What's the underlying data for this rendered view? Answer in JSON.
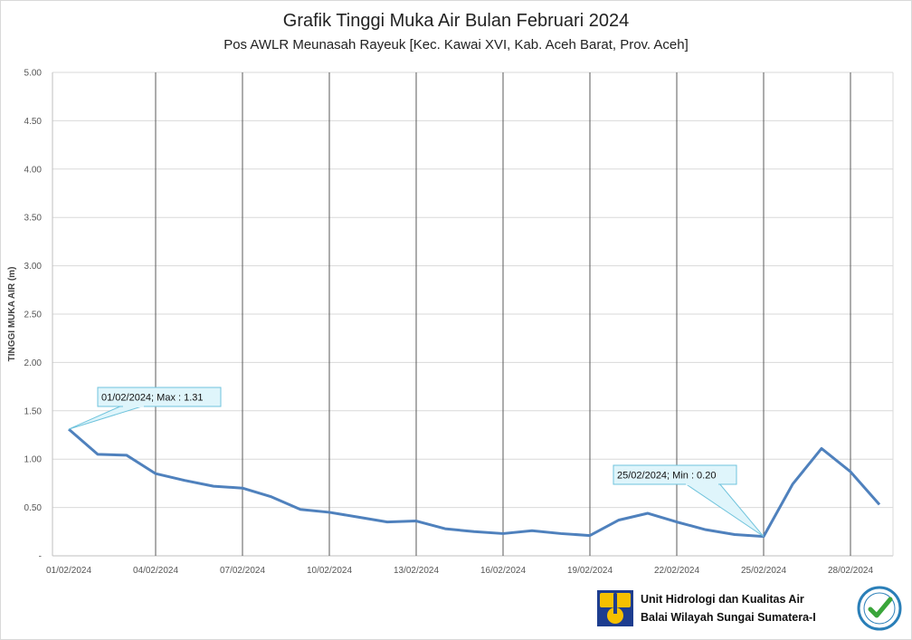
{
  "chart_data": {
    "type": "line",
    "title": "Grafik Tinggi Muka Air Bulan Februari 2024",
    "subtitle": "Pos AWLR Meunasah Rayeuk [Kec. Kawai XVI, Kab. Aceh Barat, Prov. Aceh]",
    "xlabel": "",
    "ylabel": "TINGGI MUKA AIR (m)",
    "ylim": [
      0,
      5
    ],
    "y_ticks": [
      "-",
      "0.50",
      "1.00",
      "1.50",
      "2.00",
      "2.50",
      "3.00",
      "3.50",
      "4.00",
      "4.50",
      "5.00"
    ],
    "x_tick_labels": [
      "01/02/2024",
      "04/02/2024",
      "07/02/2024",
      "10/02/2024",
      "13/02/2024",
      "16/02/2024",
      "19/02/2024",
      "22/02/2024",
      "25/02/2024",
      "28/02/2024"
    ],
    "grid": true,
    "series": [
      {
        "color": "#4f81bd",
        "x": [
          "01/02/2024",
          "02/02/2024",
          "03/02/2024",
          "04/02/2024",
          "05/02/2024",
          "06/02/2024",
          "07/02/2024",
          "08/02/2024",
          "09/02/2024",
          "10/02/2024",
          "11/02/2024",
          "12/02/2024",
          "13/02/2024",
          "14/02/2024",
          "15/02/2024",
          "16/02/2024",
          "17/02/2024",
          "18/02/2024",
          "19/02/2024",
          "20/02/2024",
          "21/02/2024",
          "22/02/2024",
          "23/02/2024",
          "24/02/2024",
          "25/02/2024",
          "26/02/2024",
          "27/02/2024",
          "28/02/2024",
          "29/02/2024"
        ],
        "values": [
          1.31,
          1.05,
          1.04,
          0.85,
          0.78,
          0.72,
          0.7,
          0.61,
          0.48,
          0.45,
          0.4,
          0.35,
          0.36,
          0.28,
          0.25,
          0.23,
          0.26,
          0.23,
          0.21,
          0.37,
          0.44,
          0.35,
          0.27,
          0.22,
          0.2,
          0.74,
          1.11,
          0.87,
          0.53
        ]
      }
    ],
    "annotations": [
      {
        "label": "01/02/2024; Max : 1.31",
        "x_index": 0,
        "value": 1.31
      },
      {
        "label": "25/02/2024; Min : 0.20",
        "x_index": 24,
        "value": 0.2
      }
    ]
  },
  "footer": {
    "line1": "Unit Hidrologi dan Kualitas Air",
    "line2": "Balai Wilayah Sungai Sumatera-I"
  },
  "icons": {
    "logo": "pu-logo-icon",
    "badge": "iso-certified-badge-icon"
  },
  "colors": {
    "series": "#4f81bd",
    "callout_fill": "#dff5fb",
    "callout_border": "#6fc3dc",
    "logo_yellow": "#f5c000",
    "logo_blue": "#1d3d8f",
    "badge_green": "#3aa53a"
  }
}
